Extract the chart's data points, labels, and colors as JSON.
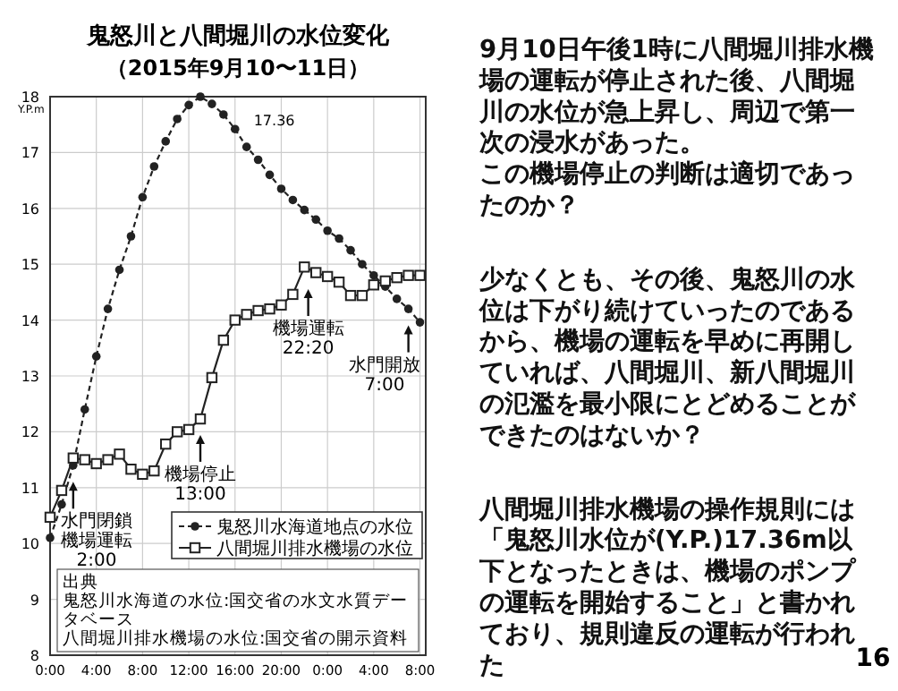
{
  "chart_data": {
    "type": "line",
    "title": "鬼怒川と八間堀川の水位変化",
    "subtitle": "（2015年9月10〜11日）",
    "ylabel": "Y.P.m",
    "x": [
      "2015-09-10T00:00",
      "2015-09-10T01:00",
      "2015-09-10T02:00",
      "2015-09-10T03:00",
      "2015-09-10T04:00",
      "2015-09-10T05:00",
      "2015-09-10T06:00",
      "2015-09-10T07:00",
      "2015-09-10T08:00",
      "2015-09-10T09:00",
      "2015-09-10T10:00",
      "2015-09-10T11:00",
      "2015-09-10T12:00",
      "2015-09-10T13:00",
      "2015-09-10T14:00",
      "2015-09-10T15:00",
      "2015-09-10T16:00",
      "2015-09-10T17:00",
      "2015-09-10T18:00",
      "2015-09-10T19:00",
      "2015-09-10T20:00",
      "2015-09-10T21:00",
      "2015-09-10T22:00",
      "2015-09-10T23:00",
      "2015-09-11T00:00",
      "2015-09-11T01:00",
      "2015-09-11T02:00",
      "2015-09-11T03:00",
      "2015-09-11T04:00",
      "2015-09-11T05:00",
      "2015-09-11T06:00",
      "2015-09-11T07:00",
      "2015-09-11T08:00"
    ],
    "series": [
      {
        "name": "鬼怒川水海道地点の水位",
        "color": "#222222",
        "marker": "circle",
        "line_style": "dashed",
        "values": [
          10.1,
          10.7,
          11.4,
          12.4,
          13.35,
          14.2,
          14.9,
          15.5,
          16.2,
          16.75,
          17.2,
          17.6,
          17.85,
          18.0,
          17.87,
          17.68,
          17.42,
          17.1,
          16.87,
          16.6,
          16.35,
          16.15,
          15.97,
          15.8,
          15.6,
          15.46,
          15.25,
          15.0,
          14.8,
          14.6,
          14.38,
          14.2,
          13.96
        ]
      },
      {
        "name": "八間堀川排水機場の水位",
        "color": "#222222",
        "marker": "square",
        "line_style": "solid",
        "values": [
          10.47,
          10.95,
          11.53,
          11.5,
          11.43,
          11.5,
          11.6,
          11.33,
          11.24,
          11.3,
          11.78,
          12.0,
          12.04,
          12.23,
          12.97,
          13.64,
          14.0,
          14.1,
          14.17,
          14.2,
          14.27,
          14.46,
          14.95,
          14.85,
          14.78,
          14.68,
          14.44,
          14.44,
          14.63,
          14.7,
          14.76,
          14.8,
          14.8
        ]
      }
    ],
    "xlim": [
      "2015-09-10T00:00",
      "2015-09-11T08:30"
    ],
    "ylim": [
      8,
      18
    ],
    "xticks": [
      {
        "value": "2015-09-10T00:00",
        "label": "0:00"
      },
      {
        "value": "2015-09-10T04:00",
        "label": "4:00"
      },
      {
        "value": "2015-09-10T08:00",
        "label": "8:00"
      },
      {
        "value": "2015-09-10T12:00",
        "label": "12:00"
      },
      {
        "value": "2015-09-10T16:00",
        "label": "16:00"
      },
      {
        "value": "2015-09-10T20:00",
        "label": "20:00"
      },
      {
        "value": "2015-09-11T00:00",
        "label": "0:00"
      },
      {
        "value": "2015-09-11T04:00",
        "label": "4:00"
      },
      {
        "value": "2015-09-11T08:00",
        "label": "8:00"
      }
    ],
    "yticks": [
      8,
      9,
      10,
      11,
      12,
      13,
      14,
      15,
      16,
      17,
      18
    ],
    "grid": true,
    "legend": "bottom right",
    "annotations": [
      {
        "text": "17.36",
        "x": "2015-09-10T17:00",
        "y": 17.36
      },
      {
        "text": "水門閉鎖機場運転2:00",
        "x": "2015-09-10T02:00",
        "y": 11.2
      },
      {
        "text": "機場停止13:00",
        "x": "2015-09-10T13:00",
        "y": 12.04
      },
      {
        "text": "機場運転22:20",
        "x": "2015-09-10T22:20",
        "y": 14.65
      },
      {
        "text": "水門開放7:00",
        "x": "2015-09-11T07:00",
        "y": 14.0
      },
      "出典",
      "鬼怒川水海道の水位:国交省の水文水質データベース",
      "八間堀川排水機場の水位:国交省の開示資料",
      "9月10日午後1時に八間堀川排水機場の運転が停止された後、八間堀川の水位が急上昇し、周辺で第一次の浸水があった。",
      "この機場停止の判断は適切であったのか？",
      "少なくとも、その後、鬼怒川の水位は下がり続けていったのであるから、機場の運転を早めに再開していれば、八間堀川、新八間堀川の氾濫を最小限にとどめることができたのはないか？",
      "八間堀川排水機場の操作規則には「鬼怒川水位が(Y.P.)17.36m以下となったときは、機場のポンプの運転を開始すること」と書かれており、規則違反の運転が行われた",
      "16"
    ]
  }
}
